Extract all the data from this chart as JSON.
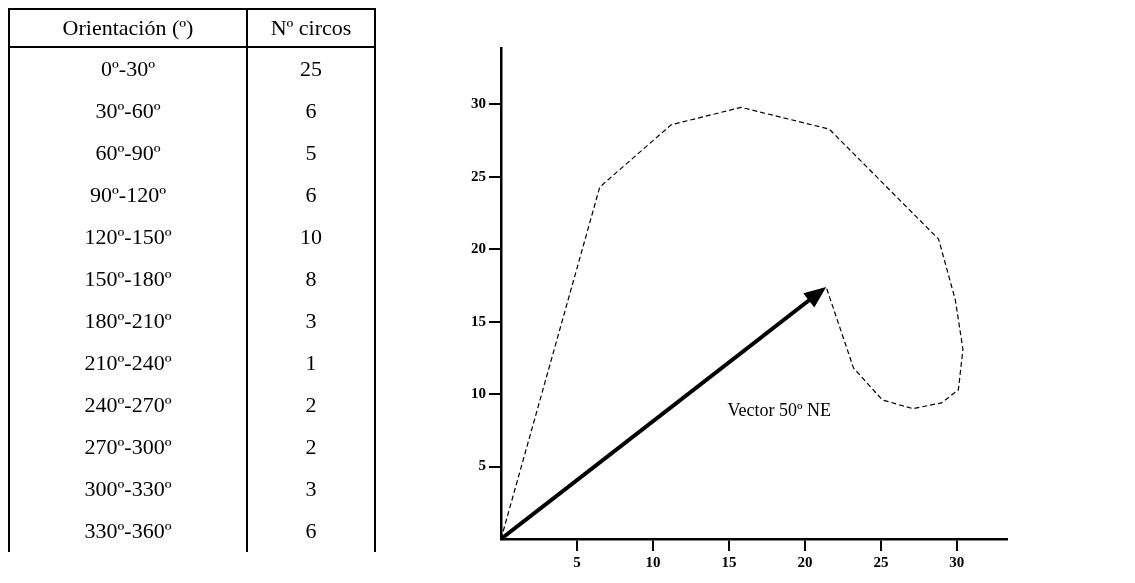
{
  "chart_data": [
    {
      "type": "other",
      "xlabel": "Orientación (º)",
      "ylabel": "Nº circos",
      "categories": [
        "0º-30º",
        "30º-60º",
        "60º-90º",
        "90º-120º",
        "120º-150º",
        "150º-180º",
        "180º-210º",
        "210º-240º",
        "240º-270º",
        "270º-300º",
        "300º-330º",
        "330º-360º"
      ],
      "values": [
        25,
        6,
        5,
        6,
        10,
        8,
        3,
        1,
        2,
        2,
        3,
        6
      ],
      "data_labels": true
    },
    {
      "type": "line",
      "xlim": [
        0,
        33.3
      ],
      "ylim": [
        0,
        33.9
      ],
      "xticks": [
        5,
        10,
        15,
        20,
        25,
        30
      ],
      "yticks": [
        5,
        10,
        15,
        20,
        25,
        30
      ],
      "grid": false,
      "legend": false,
      "series": [
        {
          "color": "#000000",
          "line_style": "dashed",
          "marker": "none",
          "x": [
            0,
            6.5,
            11.2,
            15.8,
            21.6,
            28.8,
            29.9,
            30.4,
            30.1,
            29.0,
            27.1,
            25.1,
            23.2,
            21.4
          ],
          "values": [
            0,
            24.3,
            28.6,
            29.8,
            28.3,
            20.7,
            16.5,
            13.1,
            10.3,
            9.4,
            9.0,
            9.6,
            11.8,
            17.4
          ]
        }
      ],
      "annotations": [
        "Vector 50º NE"
      ]
    }
  ]
}
